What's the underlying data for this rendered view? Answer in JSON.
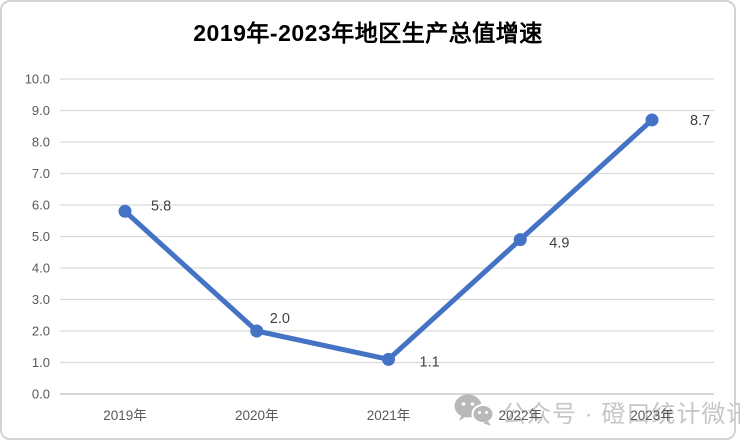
{
  "chart_data": {
    "type": "line",
    "title": "2019年-2023年地区生产总值增速",
    "categories": [
      "2019年",
      "2020年",
      "2021年",
      "2022年",
      "2023年"
    ],
    "series": [
      {
        "values": [
          5.8,
          2.0,
          1.1,
          4.9,
          8.7
        ]
      }
    ],
    "data_labels": [
      "5.8",
      "2.0",
      "1.1",
      "4.9",
      "8.7"
    ],
    "y_ticks": [
      "10.0",
      "9.0",
      "8.0",
      "7.0",
      "6.0",
      "5.0",
      "4.0",
      "3.0",
      "2.0",
      "1.0",
      "0.0"
    ],
    "ylim": [
      0,
      10
    ],
    "xlabel": "",
    "ylabel": "",
    "grid": "horizontal",
    "legend": "none",
    "colors": {
      "line": "#4472C4",
      "marker": "#4472C4",
      "gridline": "#D9D9D9",
      "axis_line": "#BFBFBF",
      "axis_labels": "#595959",
      "data_labels": "#404040",
      "title": "#000000"
    }
  },
  "watermark": {
    "icon": "wechat-icon",
    "text": "公众号 · 磴口统计微讯",
    "color": "#C6C6C6"
  }
}
